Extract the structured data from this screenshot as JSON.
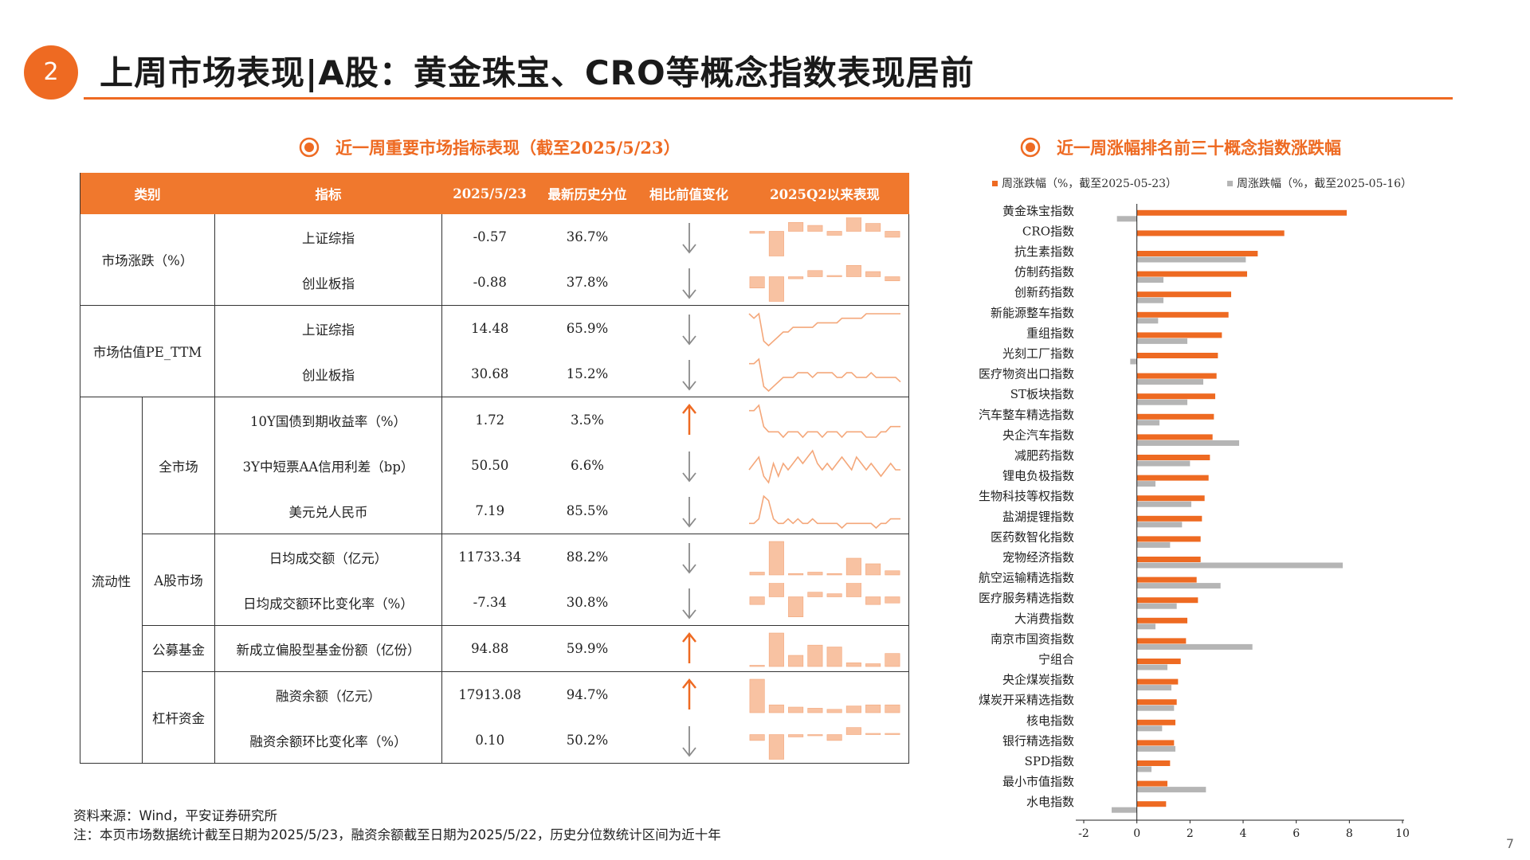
{
  "slide": {
    "number": "2",
    "title": "上周市场表现|A股：黄金珠宝、CRO等概念指数表现居前",
    "page_number": "7",
    "accent_color": "#ee6a22",
    "gray_color": "#b5b5b5"
  },
  "left_section": {
    "title": "近一周重要市场指标表现（截至2025/5/23）",
    "headers": [
      "类别",
      "指标",
      "2025/5/23",
      "最新历史分位",
      "相比前值变化",
      "2025Q2以来表现"
    ],
    "groups": {
      "g1": "市场涨跌（%）",
      "g2": "市场估值PE_TTM",
      "g3": "流动性",
      "s1": "全市场",
      "s2": "A股市场",
      "s3": "公募基金",
      "s4": "杠杆资金"
    },
    "rows": [
      {
        "indicator": "上证综指",
        "value": "-0.57",
        "percentile": "36.7%",
        "direction": "down",
        "spark": "bars",
        "bars": [
          -0.2,
          -2.5,
          0.9,
          0.6,
          -0.4,
          1.6,
          0.8,
          -0.6
        ]
      },
      {
        "indicator": "创业板指",
        "value": "-0.88",
        "percentile": "37.8%",
        "direction": "down",
        "spark": "bars",
        "bars": [
          -1.1,
          -2.4,
          -0.2,
          0.6,
          0.1,
          1.1,
          0.5,
          -0.4
        ]
      },
      {
        "indicator": "上证综指",
        "value": "14.48",
        "percentile": "65.9%",
        "direction": "down",
        "spark": "line",
        "line": [
          9,
          8,
          9,
          3,
          2,
          3,
          4,
          5,
          5,
          6,
          6,
          6,
          6,
          6,
          7,
          7,
          7,
          7,
          7,
          8,
          8,
          8,
          8,
          8,
          9,
          9,
          9,
          9,
          9,
          9,
          9,
          9
        ]
      },
      {
        "indicator": "创业板指",
        "value": "30.68",
        "percentile": "15.2%",
        "direction": "down",
        "spark": "line",
        "line": [
          8,
          8,
          9,
          3,
          2,
          3,
          4,
          5,
          5,
          5,
          6,
          6,
          6,
          5,
          6,
          6,
          6,
          6,
          5,
          5,
          6,
          6,
          5,
          5,
          5,
          6,
          5,
          5,
          5,
          5,
          5,
          4
        ]
      },
      {
        "indicator": "10Y国债到期收益率（%）",
        "value": "1.72",
        "percentile": "3.5%",
        "direction": "up",
        "spark": "line",
        "line": [
          8,
          8,
          9,
          5,
          4,
          4,
          4,
          3,
          4,
          4,
          4,
          3,
          4,
          4,
          4,
          3,
          4,
          4,
          4,
          3,
          4,
          4,
          4,
          4,
          3,
          3,
          3,
          4,
          4,
          5,
          5,
          5
        ]
      },
      {
        "indicator": "3Y中短票AA信用利差（bp）",
        "value": "50.50",
        "percentile": "6.6%",
        "direction": "down",
        "spark": "line",
        "line": [
          5,
          6,
          7,
          4,
          3,
          6,
          4,
          6,
          5,
          6,
          7,
          6,
          7,
          8,
          6,
          5,
          6,
          5,
          6,
          7,
          6,
          5,
          7,
          6,
          5,
          6,
          5,
          4,
          5,
          6,
          5,
          5
        ]
      },
      {
        "indicator": "美元兑人民币",
        "value": "7.19",
        "percentile": "85.5%",
        "direction": "down",
        "spark": "line",
        "line": [
          3,
          3,
          4,
          9,
          8,
          4,
          3,
          3,
          4,
          3,
          4,
          3,
          3,
          4,
          3,
          3,
          3,
          3,
          3,
          2,
          3,
          3,
          3,
          3,
          3,
          3,
          2,
          3,
          3,
          4,
          4,
          4
        ]
      },
      {
        "indicator": "日均成交额（亿元）",
        "value": "11733.34",
        "percentile": "88.2%",
        "direction": "down",
        "spark": "bars",
        "bars": [
          0.2,
          2.4,
          0.1,
          0.2,
          0.1,
          1.2,
          0.8,
          0.3
        ]
      },
      {
        "indicator": "日均成交额环比变化率（%）",
        "value": "-7.34",
        "percentile": "30.8%",
        "direction": "down",
        "spark": "bars",
        "bars": [
          -0.5,
          1.6,
          -1.3,
          0.3,
          0.2,
          1.1,
          -0.5,
          -0.4
        ]
      },
      {
        "indicator": "新成立偏股型基金份额（亿份）",
        "value": "94.88",
        "percentile": "59.9%",
        "direction": "up",
        "spark": "bars",
        "bars": [
          0.1,
          3.6,
          1.2,
          2.3,
          2.1,
          0.4,
          0.3,
          1.4
        ]
      },
      {
        "indicator": "融资余额（亿元）",
        "value": "17913.08",
        "percentile": "94.7%",
        "direction": "up",
        "spark": "bars",
        "bars": [
          3.0,
          0.7,
          0.5,
          0.4,
          0.3,
          0.6,
          0.7,
          0.7
        ]
      },
      {
        "indicator": "融资余额环比变化率（%）",
        "value": "0.10",
        "percentile": "50.2%",
        "direction": "down",
        "spark": "bars",
        "bars": [
          -0.5,
          -2.1,
          -0.2,
          -0.1,
          -0.5,
          0.6,
          0.1,
          0.0
        ]
      }
    ],
    "source_line1": "资料来源：Wind，平安证券研究所",
    "source_line2": "注：本页市场数据统计截至日期为2025/5/23，融资余额截至日期为2025/5/22，历史分位数统计区间为近十年"
  },
  "right_section": {
    "title": "近一周涨幅排名前三十概念指数涨跌幅"
  },
  "chart_data": {
    "type": "bar",
    "orientation": "horizontal",
    "categories": [
      "黄金珠宝指数",
      "CRO指数",
      "抗生素指数",
      "仿制药指数",
      "创新药指数",
      "新能源整车指数",
      "重组指数",
      "光刻工厂指数",
      "医疗物资出口指数",
      "ST板块指数",
      "汽车整车精选指数",
      "央企汽车指数",
      "减肥药指数",
      "锂电负极指数",
      "生物科技等权指数",
      "盐湖提锂指数",
      "医药数智化指数",
      "宠物经济指数",
      "航空运输精选指数",
      "医疗服务精选指数",
      "大消费指数",
      "南京市国资指数",
      "宁组合",
      "央企煤炭指数",
      "煤炭开采精选指数",
      "核电指数",
      "银行精选指数",
      "SPD指数",
      "最小市值指数",
      "水电指数"
    ],
    "series": [
      {
        "name": "周涨跌幅（%，截至2025-05-23）",
        "color": "#ee6a22",
        "values": [
          7.9,
          5.55,
          4.55,
          4.15,
          3.55,
          3.45,
          3.2,
          3.05,
          3.0,
          2.95,
          2.9,
          2.85,
          2.75,
          2.7,
          2.55,
          2.45,
          2.4,
          2.4,
          2.25,
          2.3,
          1.9,
          1.85,
          1.65,
          1.55,
          1.5,
          1.45,
          1.4,
          1.25,
          1.15,
          1.1
        ]
      },
      {
        "name": "周涨跌幅（%，截至2025-05-16）",
        "color": "#b5b5b5",
        "values": [
          -0.75,
          0.0,
          4.1,
          1.0,
          1.0,
          0.8,
          1.9,
          -0.25,
          2.5,
          1.9,
          0.85,
          3.85,
          2.0,
          0.7,
          2.05,
          1.7,
          1.25,
          7.75,
          3.15,
          1.5,
          0.7,
          4.35,
          1.15,
          1.3,
          1.4,
          0.95,
          1.45,
          0.55,
          2.6,
          -0.95
        ]
      }
    ],
    "xlim": [
      -2,
      10
    ],
    "xticks": [
      -2,
      0,
      2,
      4,
      6,
      8,
      10
    ],
    "legend": "top"
  }
}
